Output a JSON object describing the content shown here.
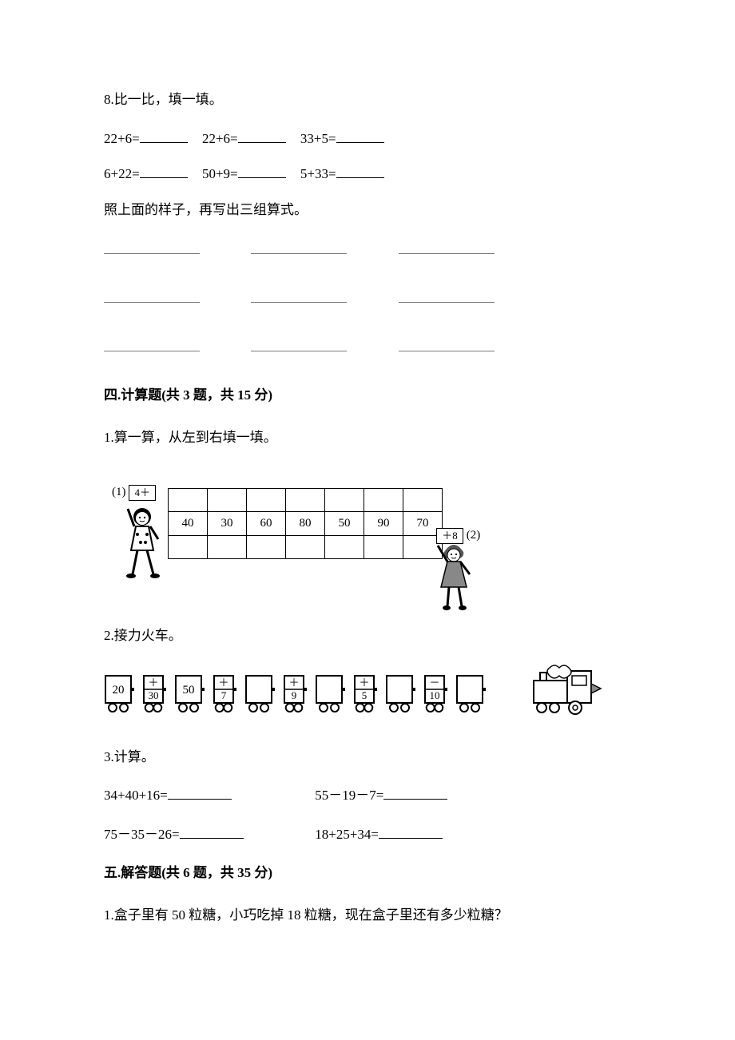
{
  "q8": {
    "title": "8.比一比，填一填。",
    "row1": [
      "22+6=",
      "22+6=",
      "33+5="
    ],
    "row2": [
      "6+22=",
      "50+9=",
      "5+33="
    ],
    "followup": "照上面的样子，再写出三组算式。"
  },
  "sec4": {
    "heading": "四.计算题(共 3 题，共 15 分)",
    "q1": {
      "title": "1.算一算，从左到右填一填。",
      "left_label": "(1)",
      "left_box": "4＋",
      "right_box": "＋8",
      "right_label": "(2)",
      "row_values": [
        "40",
        "30",
        "60",
        "80",
        "50",
        "90",
        "70"
      ]
    },
    "q2": {
      "title": "2.接力火车。"
    },
    "q3": {
      "title": "3.计算。",
      "row1a": "34+40+16=",
      "row1b": "55－19－7=",
      "row2a": "75－35－26=",
      "row2b": "18+25+34="
    }
  },
  "sec5": {
    "heading": "五.解答题(共 6 题，共 35 分)",
    "q1": "1.盒子里有 50 粒糖，小巧吃掉 18 粒糖，现在盒子里还有多少粒糖？"
  },
  "train": {
    "cars": [
      {
        "t": "val",
        "v": "20"
      },
      {
        "t": "op",
        "top": "＋",
        "bot": "30"
      },
      {
        "t": "val",
        "v": "50"
      },
      {
        "t": "op",
        "top": "＋",
        "bot": "7"
      },
      {
        "t": "val",
        "v": ""
      },
      {
        "t": "op",
        "top": "＋",
        "bot": "9"
      },
      {
        "t": "val",
        "v": ""
      },
      {
        "t": "op",
        "top": "＋",
        "bot": "5"
      },
      {
        "t": "val",
        "v": ""
      },
      {
        "t": "op",
        "top": "－",
        "bot": "10"
      },
      {
        "t": "val",
        "v": ""
      }
    ]
  },
  "style": {
    "text_color": "#000000",
    "bg_color": "#ffffff",
    "blank_line_color": "#000000",
    "triple_line_color": "#7a7a7a"
  }
}
